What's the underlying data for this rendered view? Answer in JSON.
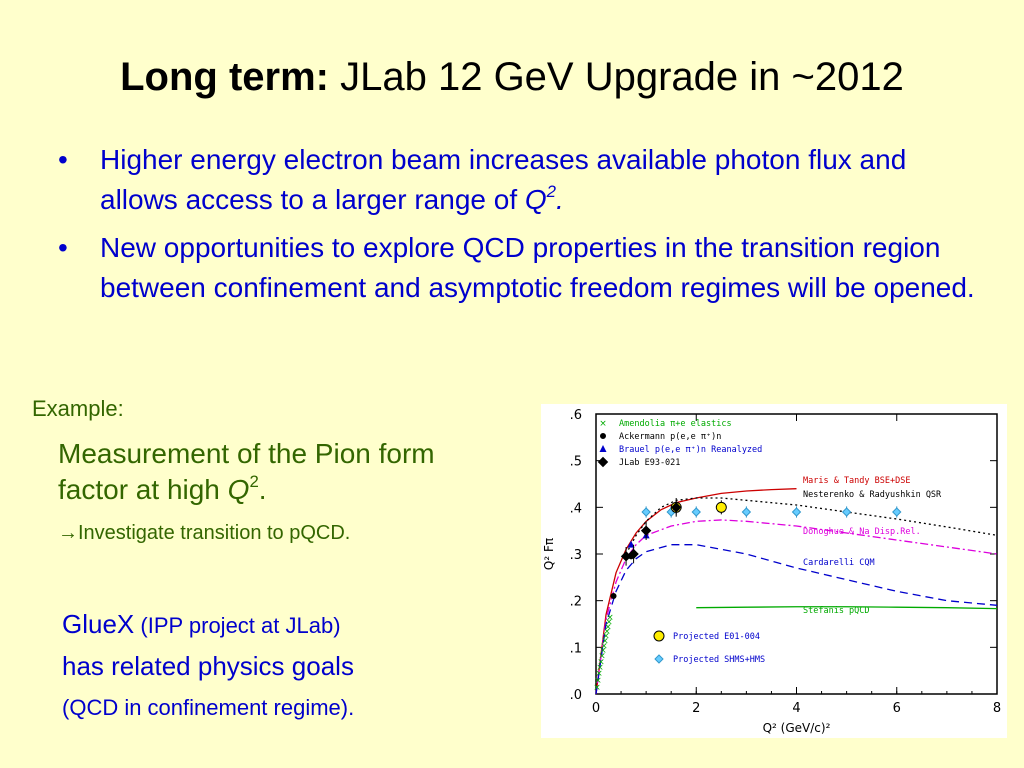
{
  "slide": {
    "title_bold": "Long term:",
    "title_rest": " JLab 12 GeV Upgrade in ~2012",
    "bullet_char": "•",
    "bullets": [
      {
        "text": "Higher energy electron beam increases available photon flux and allows access to a larger range of ",
        "q": "Q",
        "sup": "2",
        "tail": "."
      },
      {
        "text": "New opportunities to explore QCD properties in the transition region between confinement and asymptotic freedom regimes will be opened."
      }
    ],
    "example_label": "Example:",
    "measurement": {
      "text": "Measurement of the Pion form factor at high ",
      "q": "Q",
      "sup": "2",
      "tail": "."
    },
    "investigate": {
      "arrow": "→",
      "text": "Investigate transition to pQCD."
    },
    "gluex": {
      "name": "GlueX",
      "note": " (IPP project at JLab)",
      "line2": "has related physics goals",
      "line3": "(QCD in confinement regime)."
    }
  },
  "colors": {
    "background": "#ffffcc",
    "blue_text": "#0000cc",
    "green_text": "#336600"
  },
  "chart_data": {
    "type": "scatter",
    "xlim": [
      0,
      8
    ],
    "ylim": [
      0,
      0.6
    ],
    "x_ticks": [
      0,
      2,
      4,
      6,
      8
    ],
    "y_ticks": [
      ".0",
      ".1",
      ".2",
      ".3",
      ".4",
      ".5",
      ".6"
    ],
    "xlabel": "Q² (GeV/c)²",
    "ylabel": "Q² Fπ",
    "legend_top": [
      {
        "marker": "x",
        "color": "#00aa00",
        "text": "Amendolia π+e elastics"
      },
      {
        "marker": "circle",
        "color": "#000000",
        "text": "Ackermann p(e,e π⁺)n"
      },
      {
        "marker": "triangle",
        "color": "#0000cc",
        "text": "Brauel p(e,e π⁺)n Reanalyzed"
      },
      {
        "marker": "diamond",
        "color": "#000000",
        "text": "JLab E93-021"
      }
    ],
    "legend_bottom": [
      {
        "marker": "circle",
        "color": "#ffee00",
        "text": "Projected E01-004"
      },
      {
        "marker": "diamond",
        "color": "#66ccff",
        "text": "Projected SHMS+HMS"
      }
    ],
    "curve_labels": [
      {
        "text": "Maris & Tandy BSE+DSE",
        "color": "#cc0000"
      },
      {
        "text": "Nesterenko & Radyushkin QSR",
        "color": "#000000"
      },
      {
        "text": "Donoghue & Na Disp.Rel.",
        "color": "#dd00dd"
      },
      {
        "text": "Cardarelli CQM",
        "color": "#0000cc"
      },
      {
        "text": "Stefanis pQCD",
        "color": "#00aa00"
      }
    ],
    "series": [
      {
        "name": "Maris & Tandy BSE+DSE",
        "style": "solid",
        "color": "#cc0000",
        "x": [
          0,
          0.2,
          0.4,
          0.6,
          0.8,
          1.0,
          1.3,
          1.6,
          2.0,
          2.5,
          3.0,
          3.5,
          4.0
        ],
        "y": [
          0,
          0.17,
          0.26,
          0.31,
          0.345,
          0.37,
          0.395,
          0.41,
          0.42,
          0.43,
          0.435,
          0.438,
          0.44
        ]
      },
      {
        "name": "Nesterenko & Radyushkin QSR",
        "style": "dotted",
        "color": "#000000",
        "x": [
          0.6,
          0.8,
          1.0,
          1.3,
          1.6,
          2.0,
          2.5,
          3.0,
          4.0,
          5.0,
          6.0,
          7.0,
          8.0
        ],
        "y": [
          0.3,
          0.34,
          0.37,
          0.4,
          0.415,
          0.42,
          0.42,
          0.415,
          0.405,
          0.39,
          0.375,
          0.358,
          0.34
        ]
      },
      {
        "name": "Donoghue & Na Disp.Rel.",
        "style": "dashdot",
        "color": "#dd00dd",
        "x": [
          0,
          0.2,
          0.4,
          0.6,
          0.8,
          1.0,
          1.5,
          2.0,
          2.5,
          3.0,
          4.0,
          5.0,
          6.0,
          7.0,
          8.0
        ],
        "y": [
          0,
          0.16,
          0.24,
          0.29,
          0.32,
          0.34,
          0.36,
          0.37,
          0.373,
          0.37,
          0.36,
          0.345,
          0.33,
          0.315,
          0.3
        ]
      },
      {
        "name": "Cardarelli CQM",
        "style": "dashed",
        "color": "#0000cc",
        "x": [
          0,
          0.2,
          0.4,
          0.6,
          0.8,
          1.0,
          1.5,
          2.0,
          3.0,
          4.0,
          5.0,
          6.0,
          7.0,
          8.0
        ],
        "y": [
          0,
          0.15,
          0.22,
          0.265,
          0.29,
          0.305,
          0.32,
          0.32,
          0.3,
          0.27,
          0.245,
          0.22,
          0.2,
          0.19
        ]
      },
      {
        "name": "Stefanis pQCD",
        "style": "solid",
        "color": "#00aa00",
        "x": [
          2.0,
          3.0,
          4.0,
          5.0,
          6.0,
          7.0,
          8.0
        ],
        "y": [
          0.185,
          0.186,
          0.187,
          0.187,
          0.186,
          0.185,
          0.183
        ]
      }
    ],
    "points": {
      "amendolia": {
        "x": [
          0.02,
          0.04,
          0.06,
          0.08,
          0.1,
          0.12,
          0.14,
          0.16,
          0.18,
          0.2,
          0.22,
          0.24,
          0.26,
          0.28
        ],
        "y": [
          0.015,
          0.03,
          0.045,
          0.058,
          0.07,
          0.082,
          0.094,
          0.104,
          0.115,
          0.125,
          0.135,
          0.145,
          0.155,
          0.165
        ]
      },
      "ackermann": {
        "x": [
          0.35,
          0.7
        ],
        "y": [
          0.21,
          0.295
        ]
      },
      "brauel": {
        "x": [
          0.7,
          1.0,
          1.6
        ],
        "y": [
          0.32,
          0.34,
          0.4
        ]
      },
      "jlab": {
        "x": [
          0.6,
          0.75,
          1.0,
          1.6
        ],
        "y": [
          0.295,
          0.3,
          0.35,
          0.4
        ]
      },
      "e01004": {
        "x": [
          1.6,
          2.5
        ],
        "y": [
          0.4,
          0.4
        ]
      },
      "shms": {
        "x": [
          1.0,
          1.5,
          2.0,
          3.0,
          4.0,
          5.0,
          6.0
        ],
        "y": [
          0.39,
          0.39,
          0.39,
          0.39,
          0.39,
          0.39,
          0.39
        ]
      }
    }
  }
}
